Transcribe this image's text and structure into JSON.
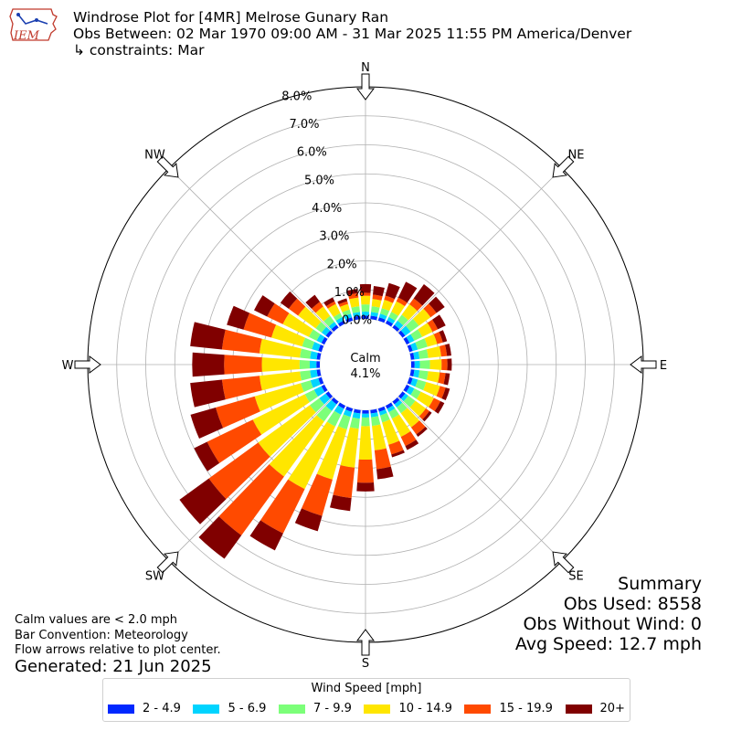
{
  "header": {
    "title": "Windrose Plot for [4MR] Melrose Gunary Ran",
    "period": "Obs Between: 02 Mar 1970 09:00 AM - 31 Mar 2025 11:55 PM America/Denver",
    "constraints": "↳ constraints: Mar"
  },
  "logo": {
    "text": "IEM",
    "color": "#c0392b"
  },
  "notes": {
    "calm": "Calm values are < 2.0 mph",
    "convention": "Bar Convention: Meteorology",
    "arrows": "Flow arrows relative to plot center."
  },
  "generated": "Generated: 21 Jun 2025",
  "summary": {
    "title": "Summary",
    "obs_used": "Obs Used: 8558",
    "obs_without_wind": "Obs Without Wind: 0",
    "avg_speed": "Avg Speed: 12.7 mph"
  },
  "legend": {
    "title": "Wind Speed [mph]",
    "items": [
      {
        "label": "2 - 4.9",
        "color": "#0028ff"
      },
      {
        "label": "5 - 6.9",
        "color": "#00d4ff"
      },
      {
        "label": "7 - 9.9",
        "color": "#7cff79"
      },
      {
        "label": "10 - 14.9",
        "color": "#ffe600"
      },
      {
        "label": "15 - 19.9",
        "color": "#ff4a00"
      },
      {
        "label": "20+",
        "color": "#800000"
      }
    ]
  },
  "chart_data": {
    "type": "windrose",
    "title": "Windrose Plot for [4MR] Melrose Gunary Ran",
    "radial_ticks": [
      0,
      1,
      2,
      3,
      4,
      5,
      6,
      7,
      8
    ],
    "radial_tick_labels": [
      "0.0%",
      "1.0%",
      "2.0%",
      "3.0%",
      "4.0%",
      "5.0%",
      "6.0%",
      "7.0%",
      "8.0%"
    ],
    "radial_max": 8.0,
    "calm_label": "Calm",
    "calm_value": "4.1%",
    "compass_labels": [
      {
        "label": "N",
        "angle": 0
      },
      {
        "label": "NE",
        "angle": 45
      },
      {
        "label": "E",
        "angle": 90
      },
      {
        "label": "SE",
        "angle": 135
      },
      {
        "label": "S",
        "angle": 180
      },
      {
        "label": "SW",
        "angle": 225
      },
      {
        "label": "W",
        "angle": 270
      },
      {
        "label": "NW",
        "angle": 315
      }
    ],
    "speed_bins": [
      "2 - 4.9",
      "5 - 6.9",
      "7 - 9.9",
      "10 - 14.9",
      "15 - 19.9",
      "20+"
    ],
    "colors": [
      "#0028ff",
      "#00d4ff",
      "#7cff79",
      "#ffe600",
      "#ff4a00",
      "#800000"
    ],
    "directions": [
      {
        "dir": 0,
        "cum": [
          0.12,
          0.25,
          0.5,
          0.8,
          0.9,
          1.2
        ]
      },
      {
        "dir": 10,
        "cum": [
          0.12,
          0.25,
          0.45,
          0.7,
          0.85,
          1.15
        ]
      },
      {
        "dir": 20,
        "cum": [
          0.12,
          0.25,
          0.45,
          0.75,
          0.9,
          1.35
        ]
      },
      {
        "dir": 30,
        "cum": [
          0.12,
          0.25,
          0.45,
          0.85,
          1.0,
          1.6
        ]
      },
      {
        "dir": 40,
        "cum": [
          0.12,
          0.3,
          0.55,
          1.0,
          1.25,
          1.85
        ]
      },
      {
        "dir": 50,
        "cum": [
          0.12,
          0.35,
          0.7,
          1.2,
          1.45,
          1.8
        ]
      },
      {
        "dir": 60,
        "cum": [
          0.12,
          0.3,
          0.6,
          1.0,
          1.2,
          1.5
        ]
      },
      {
        "dir": 70,
        "cum": [
          0.12,
          0.3,
          0.65,
          1.0,
          1.2,
          1.35
        ]
      },
      {
        "dir": 80,
        "cum": [
          0.12,
          0.3,
          0.6,
          1.05,
          1.25,
          1.4
        ]
      },
      {
        "dir": 90,
        "cum": [
          0.12,
          0.3,
          0.65,
          1.05,
          1.25,
          1.4
        ]
      },
      {
        "dir": 100,
        "cum": [
          0.12,
          0.3,
          0.6,
          1.0,
          1.2,
          1.35
        ]
      },
      {
        "dir": 110,
        "cum": [
          0.12,
          0.3,
          0.6,
          1.1,
          1.3,
          1.45
        ]
      },
      {
        "dir": 120,
        "cum": [
          0.12,
          0.3,
          0.55,
          1.05,
          1.3,
          1.45
        ]
      },
      {
        "dir": 130,
        "cum": [
          0.12,
          0.25,
          0.55,
          1.0,
          1.15,
          1.25
        ]
      },
      {
        "dir": 140,
        "cum": [
          0.12,
          0.25,
          0.5,
          1.1,
          1.4,
          1.5
        ]
      },
      {
        "dir": 150,
        "cum": [
          0.12,
          0.25,
          0.5,
          1.2,
          1.55,
          1.7
        ]
      },
      {
        "dir": 160,
        "cum": [
          0.12,
          0.25,
          0.5,
          1.3,
          1.65,
          1.75
        ]
      },
      {
        "dir": 170,
        "cum": [
          0.12,
          0.25,
          0.55,
          1.4,
          2.05,
          2.4
        ]
      },
      {
        "dir": 180,
        "cum": [
          0.12,
          0.25,
          0.55,
          1.7,
          2.5,
          2.8
        ]
      },
      {
        "dir": 190,
        "cum": [
          0.12,
          0.3,
          0.65,
          2.0,
          3.05,
          3.5
        ]
      },
      {
        "dir": 200,
        "cum": [
          0.12,
          0.3,
          0.75,
          2.55,
          3.85,
          4.4
        ]
      },
      {
        "dir": 210,
        "cum": [
          0.12,
          0.35,
          0.8,
          3.2,
          4.9,
          5.55
        ]
      },
      {
        "dir": 220,
        "cum": [
          0.12,
          0.4,
          0.85,
          3.2,
          5.7,
          6.7
        ]
      },
      {
        "dir": 230,
        "cum": [
          0.12,
          0.4,
          0.8,
          3.0,
          5.1,
          6.35
        ]
      },
      {
        "dir": 240,
        "cum": [
          0.12,
          0.4,
          0.75,
          2.75,
          4.5,
          5.0
        ]
      },
      {
        "dir": 250,
        "cum": [
          0.12,
          0.4,
          0.75,
          2.4,
          3.8,
          4.7
        ]
      },
      {
        "dir": 260,
        "cum": [
          0.12,
          0.35,
          0.7,
          2.1,
          3.4,
          4.5
        ]
      },
      {
        "dir": 270,
        "cum": [
          0.12,
          0.35,
          0.7,
          2.0,
          3.3,
          4.4
        ]
      },
      {
        "dir": 280,
        "cum": [
          0.12,
          0.35,
          0.7,
          2.1,
          3.4,
          4.5
        ]
      },
      {
        "dir": 290,
        "cum": [
          0.12,
          0.35,
          0.7,
          1.8,
          2.8,
          3.4
        ]
      },
      {
        "dir": 300,
        "cum": [
          0.12,
          0.3,
          0.6,
          1.6,
          2.2,
          2.7
        ]
      },
      {
        "dir": 310,
        "cum": [
          0.12,
          0.3,
          0.55,
          1.3,
          1.7,
          2.05
        ]
      },
      {
        "dir": 320,
        "cum": [
          0.12,
          0.25,
          0.5,
          0.9,
          1.1,
          1.4
        ]
      },
      {
        "dir": 330,
        "cum": [
          0.12,
          0.25,
          0.4,
          0.75,
          0.85,
          1.0
        ]
      },
      {
        "dir": 340,
        "cum": [
          0.12,
          0.25,
          0.4,
          0.6,
          0.7,
          0.8
        ]
      },
      {
        "dir": 350,
        "cum": [
          0.12,
          0.25,
          0.45,
          0.75,
          0.9,
          1.05
        ]
      }
    ]
  }
}
